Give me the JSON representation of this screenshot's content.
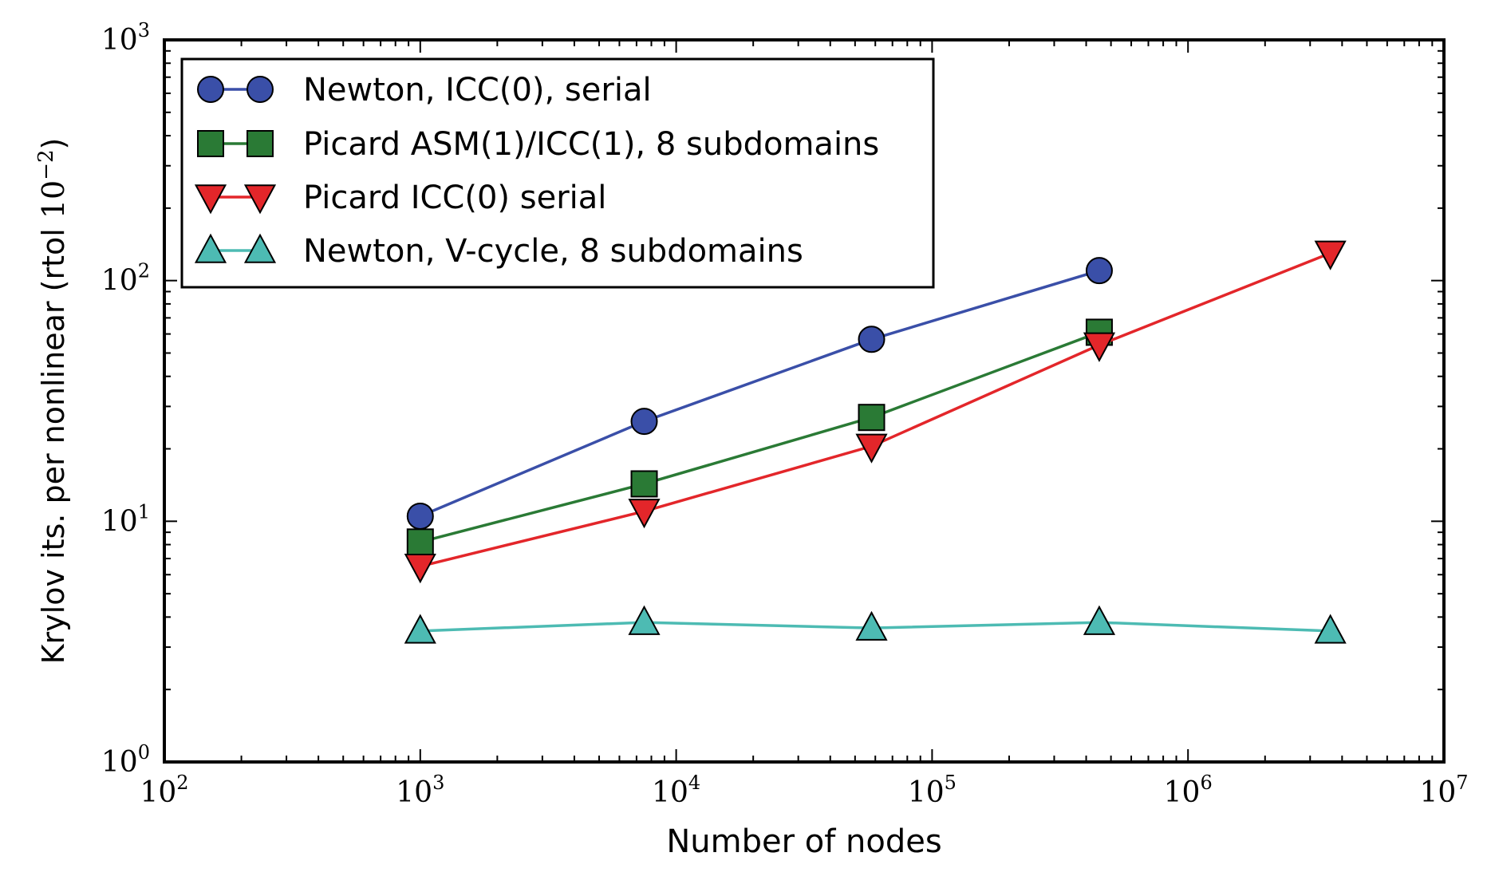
{
  "chart_data": {
    "type": "line",
    "x_scale": "log",
    "y_scale": "log",
    "xlim": [
      100,
      10000000
    ],
    "ylim": [
      1,
      1000
    ],
    "xlabel": "Number of nodes",
    "ylabel_main": "Krylov its. per nonlinear (rtol ",
    "ylabel_base": "10",
    "ylabel_exp": "−2",
    "ylabel_close": ")",
    "x_ticks": [
      {
        "base": "10",
        "exp": "2",
        "value": 100
      },
      {
        "base": "10",
        "exp": "3",
        "value": 1000
      },
      {
        "base": "10",
        "exp": "4",
        "value": 10000
      },
      {
        "base": "10",
        "exp": "5",
        "value": 100000
      },
      {
        "base": "10",
        "exp": "6",
        "value": 1000000
      },
      {
        "base": "10",
        "exp": "7",
        "value": 10000000
      }
    ],
    "y_ticks": [
      {
        "base": "10",
        "exp": "0",
        "value": 1
      },
      {
        "base": "10",
        "exp": "1",
        "value": 10
      },
      {
        "base": "10",
        "exp": "2",
        "value": 100
      },
      {
        "base": "10",
        "exp": "3",
        "value": 1000
      }
    ],
    "grid": false,
    "legend_position": "top-left",
    "series": [
      {
        "name": "Newton, ICC(0), serial",
        "color": "#3a4fa8",
        "marker": "circle",
        "x": [
          1000,
          7500,
          58000,
          450000
        ],
        "y": [
          10.5,
          26,
          57,
          110
        ]
      },
      {
        "name": "Picard ASM(1)/ICC(1), 8 subdomains",
        "color": "#2a7a35",
        "marker": "square",
        "x": [
          1000,
          7500,
          58000,
          450000
        ],
        "y": [
          8.2,
          14.3,
          27,
          61
        ]
      },
      {
        "name": "Picard ICC(0) serial",
        "color": "#e3262a",
        "marker": "triangle-down",
        "x": [
          1000,
          7500,
          58000,
          450000,
          3600000
        ],
        "y": [
          6.5,
          11,
          20.5,
          54,
          130
        ]
      },
      {
        "name": "Newton, V-cycle, 8 subdomains",
        "color": "#4dbbb3",
        "marker": "triangle-up",
        "x": [
          1000,
          7500,
          58000,
          450000,
          3600000
        ],
        "y": [
          3.5,
          3.8,
          3.6,
          3.8,
          3.5
        ]
      }
    ]
  }
}
